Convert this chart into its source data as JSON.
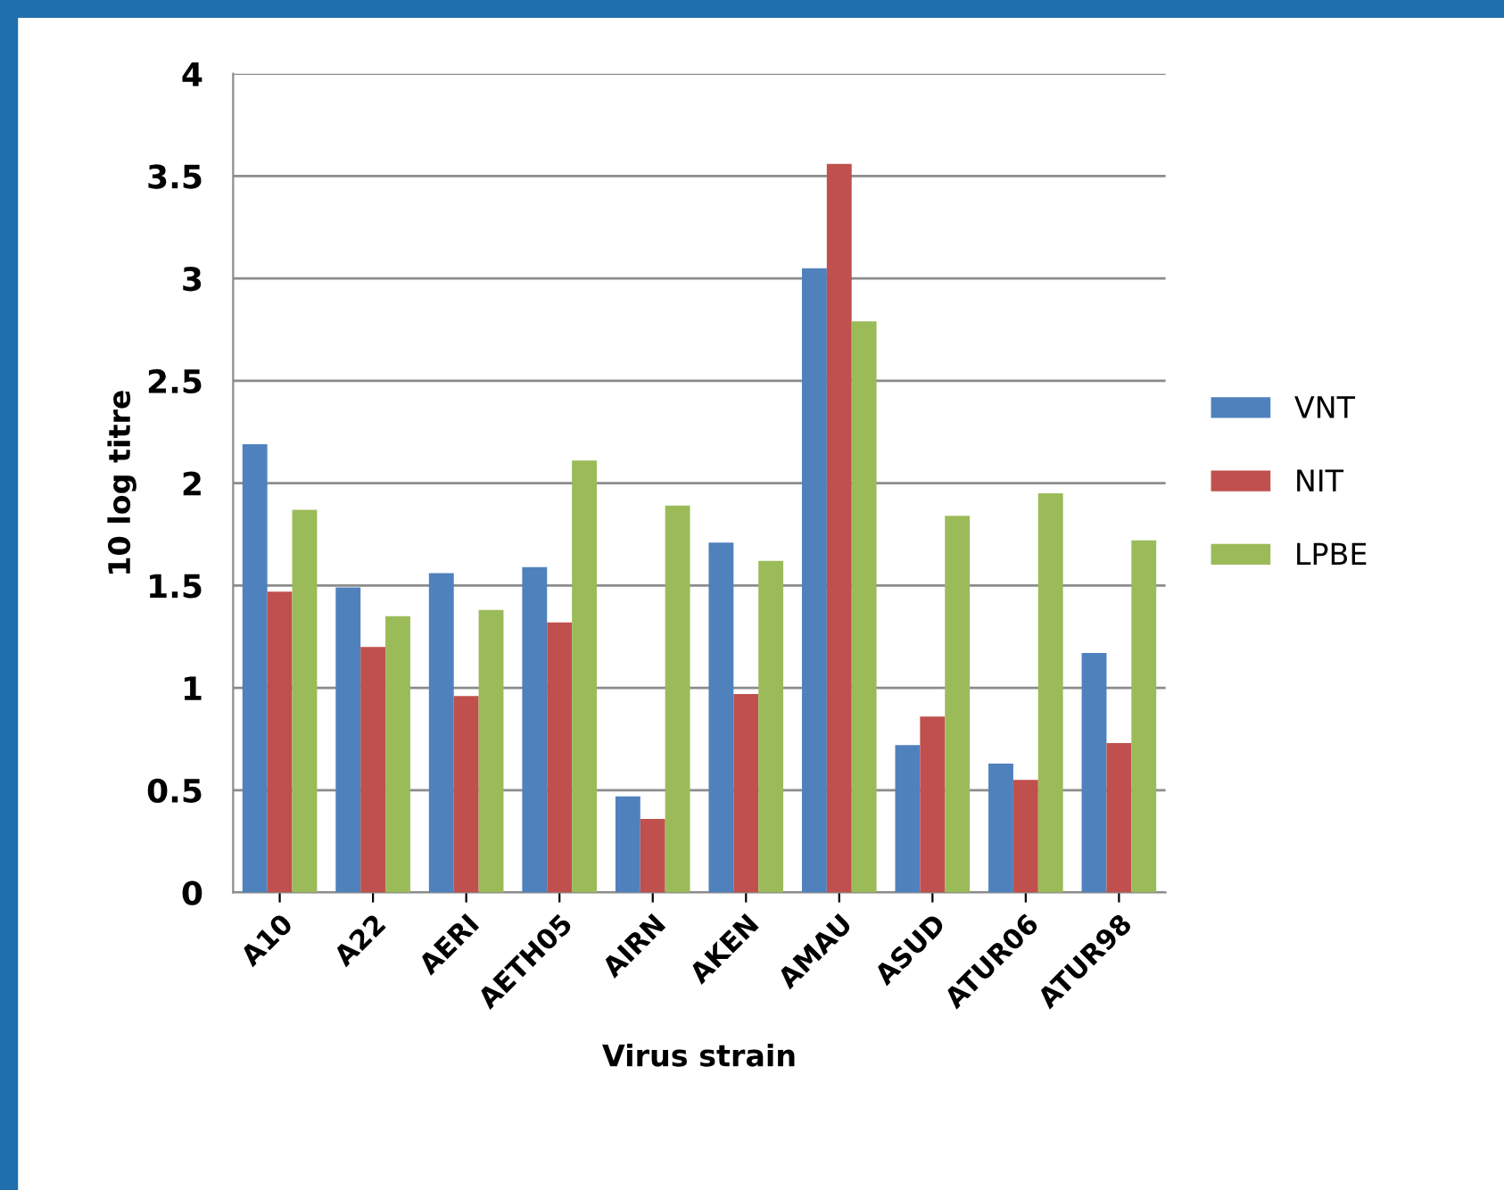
{
  "chart_data": {
    "type": "bar",
    "xlabel": "Virus strain",
    "ylabel": "10 log titre",
    "categories": [
      "A10",
      "A22",
      "AERI",
      "AETH05",
      "AIRN",
      "AKEN",
      "AMAU",
      "ASUD",
      "ATUR06",
      "ATUR98"
    ],
    "series": [
      {
        "name": "VNT",
        "color": "#4f81bd",
        "values": [
          2.19,
          1.49,
          1.56,
          1.59,
          0.47,
          1.71,
          3.05,
          0.72,
          0.63,
          1.17
        ]
      },
      {
        "name": "NIT",
        "color": "#c0504d",
        "values": [
          1.47,
          1.2,
          0.96,
          1.32,
          0.36,
          0.97,
          3.56,
          0.86,
          0.55,
          0.73
        ]
      },
      {
        "name": "LPBE",
        "color": "#9bbb59",
        "values": [
          1.87,
          1.35,
          1.38,
          2.11,
          1.89,
          1.62,
          2.79,
          1.84,
          1.95,
          1.72
        ]
      }
    ],
    "ylim": [
      0,
      4
    ],
    "yticks": [
      0,
      0.5,
      1,
      1.5,
      2,
      2.5,
      3,
      3.5,
      4
    ],
    "grid": "y",
    "legend": "right"
  }
}
